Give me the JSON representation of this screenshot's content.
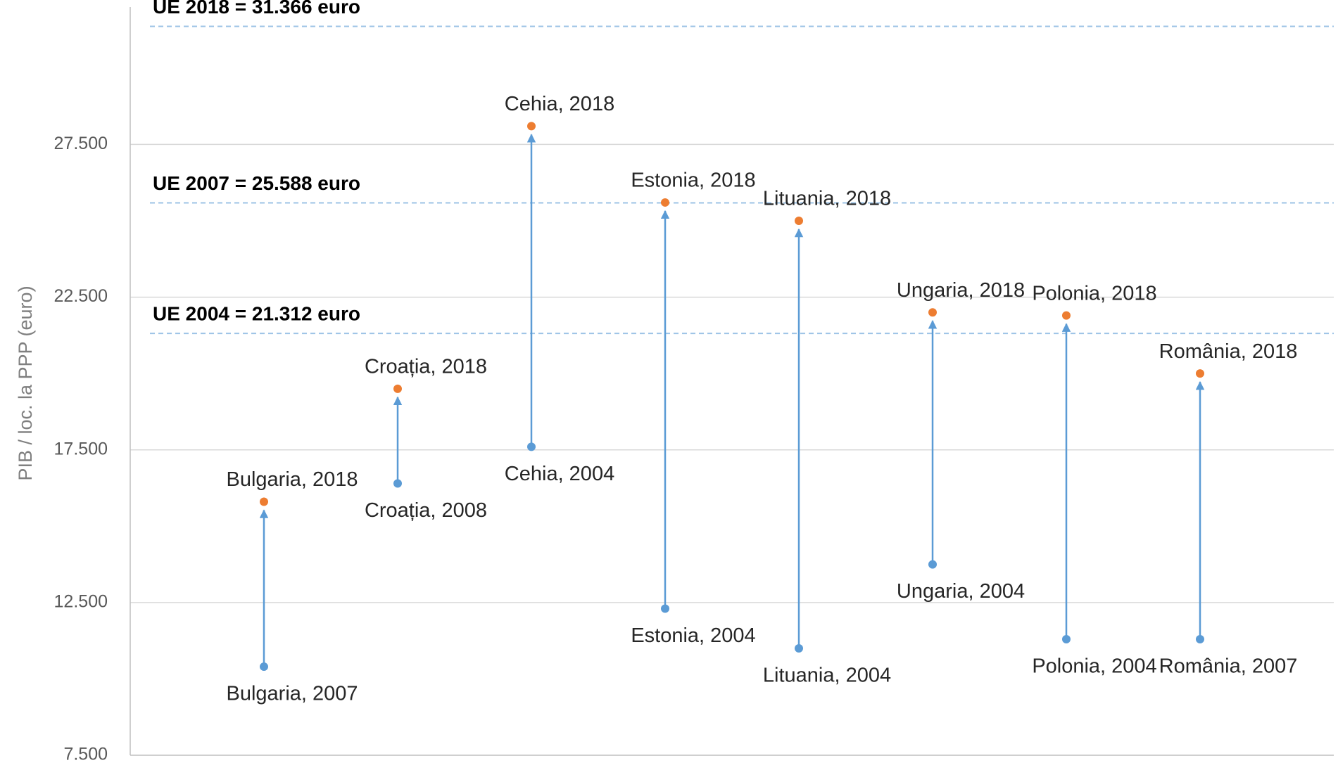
{
  "chart_data": {
    "type": "dumbbell",
    "y_label": "PIB / loc. la PPP (euro)",
    "ylim": [
      7500,
      32000
    ],
    "yticks": [
      {
        "value": 7500,
        "label": "7.500"
      },
      {
        "value": 12500,
        "label": "12.500"
      },
      {
        "value": 17500,
        "label": "17.500"
      },
      {
        "value": 22500,
        "label": "22.500"
      },
      {
        "value": 27500,
        "label": "27.500"
      }
    ],
    "grid": true,
    "start_color": "#5b9bd5",
    "end_color": "#ed7d31",
    "arrow_color": "#5b9bd5",
    "label_color": "#262626",
    "highlight_color": "#ff0000",
    "reference_color": "#9dc3e6",
    "reference_lines": [
      {
        "label": "UE 2018 = 31.366 euro",
        "value": 31366
      },
      {
        "label": "UE 2007 = 25.588 euro",
        "value": 25588
      },
      {
        "label": "UE 2004 = 21.312 euro",
        "value": 21312
      }
    ],
    "items": [
      {
        "start_label": "Bulgaria, 2007",
        "start": 10400,
        "end_label": "Bulgaria, 2018",
        "end": 15800,
        "highlight": false
      },
      {
        "start_label": "Croația, 2008",
        "start": 16400,
        "end_label": "Croația, 2018",
        "end": 19500,
        "highlight": false
      },
      {
        "start_label": "Cehia, 2004",
        "start": 17600,
        "end_label": "Cehia, 2018",
        "end": 28100,
        "highlight": false
      },
      {
        "start_label": "Estonia, 2004",
        "start": 12300,
        "end_label": "Estonia, 2018",
        "end": 25600,
        "highlight": false
      },
      {
        "start_label": "Lituania, 2004",
        "start": 11000,
        "end_label": "Lituania, 2018",
        "end": 25000,
        "highlight": false
      },
      {
        "start_label": "Ungaria, 2004",
        "start": 13750,
        "end_label": "Ungaria, 2018",
        "end": 22000,
        "highlight": false
      },
      {
        "start_label": "Polonia, 2004",
        "start": 11300,
        "end_label": "Polonia, 2018",
        "end": 21900,
        "highlight": false
      },
      {
        "start_label": "România, 2007",
        "start": 11300,
        "end_label": "România, 2018",
        "end": 20000,
        "highlight": true
      }
    ]
  }
}
